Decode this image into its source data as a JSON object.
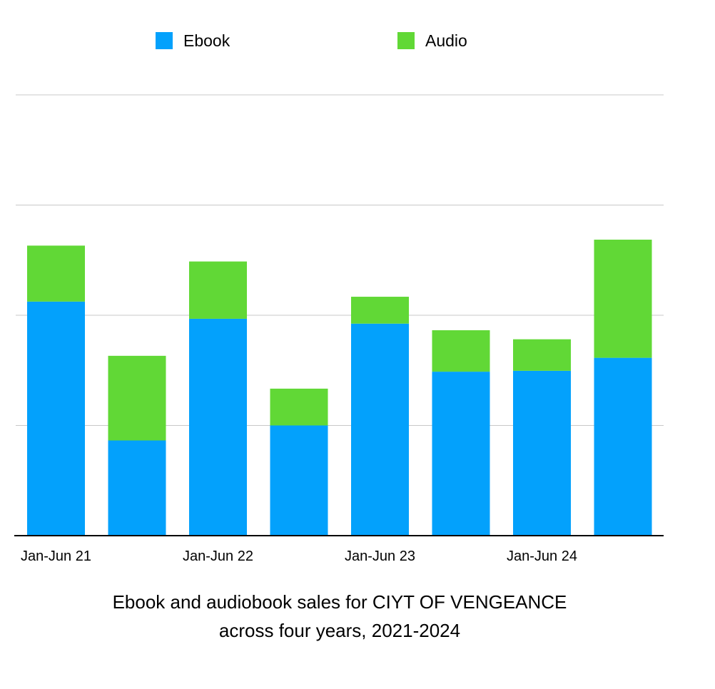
{
  "chart_data": {
    "type": "bar",
    "stacked": true,
    "categories": [
      "Jan-Jun 21",
      "",
      "Jan-Jun 22",
      "",
      "Jan-Jun 23",
      "",
      "Jan-Jun 24",
      ""
    ],
    "series": [
      {
        "name": "Ebook",
        "color": "#03a1fc",
        "values": [
          1062,
          432,
          984,
          500,
          962,
          744,
          748,
          807
        ]
      },
      {
        "name": "Audio",
        "color": "#61d836",
        "values": [
          254,
          384,
          260,
          167,
          122,
          188,
          143,
          536
        ]
      }
    ],
    "ylim": [
      0,
      2000
    ],
    "gridlines": [
      500,
      1000,
      1500,
      2000
    ],
    "grid": true,
    "show_y_tick_labels": false,
    "legend_position": "top",
    "title": "",
    "xlabel": "",
    "ylabel": ""
  },
  "caption": {
    "line1": "Ebook and audiobook sales for CIYT OF VENGEANCE",
    "line2": "across four years, 2021-2024"
  }
}
